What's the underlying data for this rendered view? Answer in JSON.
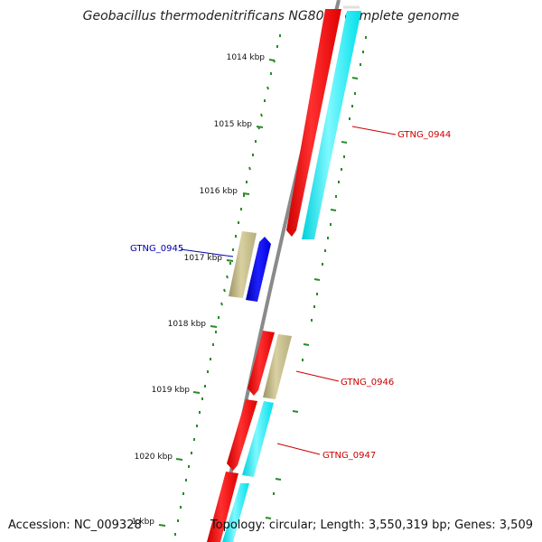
{
  "title": "Geobacillus thermodenitrificans NG80-2, complete genome",
  "footer": {
    "accession": "Accession: NC_009328",
    "topology": "Topology: circular; Length: 3,550,319 bp; Genes: 3,509"
  },
  "scale_labels": [
    "1014 kbp",
    "1015 kbp",
    "1016 kbp",
    "1017 kbp",
    "1018 kbp",
    "1019 kbp",
    "1020 kbp",
    "1 kbp"
  ],
  "genes": [
    {
      "name": "GTNG_0944",
      "color": "#ff0000"
    },
    {
      "name": "GTNG_0945",
      "color": "#0000cc"
    },
    {
      "name": "GTNG_0946",
      "color": "#ff0000"
    },
    {
      "name": "GTNG_0947",
      "color": "#ff0000"
    }
  ],
  "colors": {
    "backbone": "#8a8a8a",
    "red_feature": "#ff0000",
    "cyan_feature": "#00e5ee",
    "khaki_feature": "#c8c08a",
    "blue_feature": "#0000ee",
    "tick_green": "#2a8a2a"
  }
}
